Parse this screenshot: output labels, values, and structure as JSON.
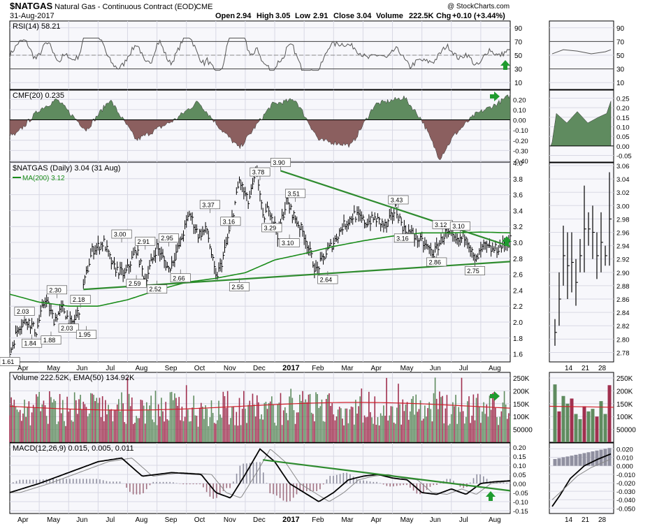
{
  "header": {
    "symbol": "$NATGAS",
    "name": "Natural Gas - Continuous Contract (EOD)",
    "exchange": "CME",
    "date": "31-Aug-2017",
    "open_label": "Open",
    "open": "2.94",
    "high_label": "High",
    "high": "3.05",
    "low_label": "Low",
    "low": "2.91",
    "close_label": "Close",
    "close": "3.04",
    "volume_label": "Volume",
    "volume": "222.5K",
    "chg_label": "Chg",
    "chg": "+0.10 (+3.44%)",
    "brand": "@ StockCharts.com"
  },
  "colors": {
    "price_line": "#000000",
    "ma": "#1a8c1a",
    "trend": "#2e8b2e",
    "cmf_pos": "#5f8b5f",
    "cmf_neg": "#8b5f5f",
    "vol_up": "#5f8b5f",
    "vol_down": "#a0304f",
    "arrow": "#1f9b2f",
    "panel_bg": "#f7f7fb",
    "grid": "#d8d8e4"
  },
  "chart_data": [
    {
      "type": "line",
      "panel": "rsi",
      "title": "RSI(14) 58.21",
      "ylim": [
        0,
        100
      ],
      "y_ticks": [
        10,
        30,
        50,
        70,
        90
      ],
      "overbought": 70,
      "oversold": 30,
      "last_value": 58.21
    },
    {
      "type": "area",
      "panel": "cmf",
      "title": "CMF(20) 0.235",
      "ylim": [
        -0.4,
        0.25
      ],
      "y_ticks": [
        0.2,
        0.1,
        0.0,
        -0.1,
        -0.2,
        -0.3,
        -0.4
      ],
      "y_tick_labels": [
        "0.20",
        "0.10",
        "0.00",
        "-0.10",
        "-0.20",
        "-0.30",
        "-0.40"
      ],
      "last_value": 0.235
    },
    {
      "type": "line",
      "panel": "price",
      "title": "$NATGAS (Daily) 3.04 (31 Aug)",
      "ma_label": "MA(200) 3.12",
      "ylim": [
        1.5,
        4.0
      ],
      "y_ticks": [
        1.6,
        1.8,
        2.0,
        2.2,
        2.4,
        2.6,
        2.8,
        3.0,
        3.2,
        3.4,
        3.6,
        3.8,
        4.0
      ],
      "y_tick_labels": [
        "1.6",
        "1.8",
        "2.0",
        "2.2",
        "2.4",
        "2.6",
        "2.8",
        "3.0",
        "3.2",
        "3.4",
        "3.6",
        "3.8",
        "4.0"
      ],
      "x_labels": [
        "Apr",
        "May",
        "Jun",
        "Jul",
        "Aug",
        "Sep",
        "Oct",
        "Nov",
        "Dec",
        "2017",
        "Feb",
        "Mar",
        "Apr",
        "May",
        "Jun",
        "Jul",
        "Aug"
      ],
      "x_label_pos": [
        0.5,
        1.5,
        2.5,
        3.5,
        4.5,
        5.5,
        6.5,
        7.5,
        8.5,
        9.5,
        10.5,
        11.5,
        12.5,
        13.5,
        14.5,
        15.5,
        16.5
      ],
      "series_x": [
        0,
        0.3,
        0.6,
        0.9,
        1.2,
        1.5,
        1.8,
        2.1,
        2.4,
        2.5,
        2.8,
        3.2,
        3.5,
        3.9,
        4.3,
        4.6,
        5.0,
        5.4,
        5.8,
        6.1,
        6.4,
        6.7,
        7.0,
        7.2,
        7.5,
        7.8,
        8.1,
        8.4,
        8.6,
        8.8,
        9.1,
        9.4,
        9.7,
        10.0,
        10.4,
        10.8,
        11.0,
        11.3,
        11.7,
        12.1,
        12.4,
        12.8,
        13.1,
        13.4,
        13.7,
        14.0,
        14.4,
        14.8,
        15.2,
        15.5,
        15.8,
        16.1,
        16.4,
        16.7,
        17.0
      ],
      "series_y": [
        1.61,
        1.95,
        2.03,
        1.88,
        2.3,
        2.03,
        2.18,
        1.95,
        2.2,
        2.45,
        2.9,
        3.0,
        2.7,
        2.59,
        2.91,
        2.52,
        2.95,
        2.66,
        3.0,
        3.37,
        3.1,
        3.16,
        2.55,
        2.75,
        3.2,
        3.78,
        3.5,
        3.9,
        3.29,
        3.45,
        3.1,
        3.51,
        3.3,
        3.1,
        2.64,
        2.9,
        3.0,
        3.2,
        3.35,
        3.25,
        3.3,
        3.2,
        3.43,
        3.16,
        3.1,
        3.0,
        2.86,
        3.12,
        3.0,
        3.1,
        2.75,
        2.95,
        2.9,
        2.95,
        3.04
      ],
      "ma_x": [
        0,
        1,
        2,
        3,
        4,
        5,
        6,
        7,
        8,
        9,
        10,
        11,
        12,
        13,
        14,
        15,
        16,
        17
      ],
      "ma_y": [
        2.35,
        2.25,
        2.2,
        2.2,
        2.28,
        2.4,
        2.5,
        2.55,
        2.62,
        2.78,
        2.86,
        2.95,
        3.02,
        3.08,
        3.12,
        3.12,
        3.13,
        3.12
      ],
      "annotations": [
        {
          "label": "1.61",
          "x": 0.0,
          "y": 1.61,
          "pos": "below"
        },
        {
          "label": "2.03",
          "x": 0.5,
          "y": 2.03,
          "pos": "above"
        },
        {
          "label": "1.84",
          "x": 0.75,
          "y": 1.84,
          "pos": "below"
        },
        {
          "label": "1.88",
          "x": 1.4,
          "y": 1.88,
          "pos": "below"
        },
        {
          "label": "2.30",
          "x": 1.6,
          "y": 2.3,
          "pos": "above"
        },
        {
          "label": "2.03",
          "x": 2.0,
          "y": 2.03,
          "pos": "below"
        },
        {
          "label": "2.18",
          "x": 2.4,
          "y": 2.18,
          "pos": "above"
        },
        {
          "label": "1.95",
          "x": 2.6,
          "y": 1.95,
          "pos": "below"
        },
        {
          "label": "3.00",
          "x": 3.8,
          "y": 3.0,
          "pos": "above"
        },
        {
          "label": "2.59",
          "x": 4.3,
          "y": 2.59,
          "pos": "below"
        },
        {
          "label": "2.91",
          "x": 4.6,
          "y": 2.91,
          "pos": "above"
        },
        {
          "label": "2.52",
          "x": 5.0,
          "y": 2.52,
          "pos": "below"
        },
        {
          "label": "2.95",
          "x": 5.4,
          "y": 2.95,
          "pos": "above"
        },
        {
          "label": "2.66",
          "x": 5.8,
          "y": 2.66,
          "pos": "below"
        },
        {
          "label": "3.37",
          "x": 6.8,
          "y": 3.37,
          "pos": "above"
        },
        {
          "label": "3.16",
          "x": 7.5,
          "y": 3.16,
          "pos": "above"
        },
        {
          "label": "2.55",
          "x": 7.8,
          "y": 2.55,
          "pos": "below"
        },
        {
          "label": "3.78",
          "x": 8.5,
          "y": 3.78,
          "pos": "above"
        },
        {
          "label": "3.90",
          "x": 9.2,
          "y": 3.9,
          "pos": "above"
        },
        {
          "label": "3.29",
          "x": 8.9,
          "y": 3.29,
          "pos": "below"
        },
        {
          "label": "3.51",
          "x": 9.7,
          "y": 3.51,
          "pos": "above"
        },
        {
          "label": "3.10",
          "x": 9.5,
          "y": 3.1,
          "pos": "below"
        },
        {
          "label": "2.64",
          "x": 10.8,
          "y": 2.64,
          "pos": "below"
        },
        {
          "label": "3.43",
          "x": 13.2,
          "y": 3.43,
          "pos": "above"
        },
        {
          "label": "3.16",
          "x": 13.4,
          "y": 3.16,
          "pos": "below"
        },
        {
          "label": "3.12",
          "x": 14.7,
          "y": 3.12,
          "pos": "above"
        },
        {
          "label": "2.86",
          "x": 14.5,
          "y": 2.86,
          "pos": "below"
        },
        {
          "label": "3.10",
          "x": 15.3,
          "y": 3.1,
          "pos": "above"
        },
        {
          "label": "2.75",
          "x": 15.8,
          "y": 2.75,
          "pos": "below"
        }
      ]
    },
    {
      "type": "bar",
      "panel": "volume",
      "title": "Volume 222.52K, EMA(50) 134.92K",
      "ylim": [
        0,
        250000
      ],
      "y_ticks": [
        50000,
        100000,
        150000,
        200000,
        250000
      ],
      "y_tick_labels": [
        "50000",
        "100K",
        "150K",
        "200K",
        "250K"
      ]
    },
    {
      "type": "line",
      "panel": "macd",
      "title": "MACD(12,26,9) 0.015, 0.005, 0.011",
      "ylim": [
        -0.15,
        0.2
      ],
      "y_ticks": [
        0.2,
        0.15,
        0.1,
        0.05,
        0.0,
        -0.05,
        -0.1,
        -0.15
      ],
      "y_tick_labels": [
        "0.20",
        "0.15",
        "0.10",
        "0.05",
        "0.00",
        "-0.05",
        "-0.10",
        "-0.15"
      ],
      "x_labels": [
        "Apr",
        "May",
        "Jun",
        "Jul",
        "Aug",
        "Sep",
        "Oct",
        "Nov",
        "Dec",
        "2017",
        "Feb",
        "Mar",
        "Apr",
        "May",
        "Jun",
        "Jul",
        "Aug"
      ],
      "x_label_pos": [
        0.5,
        1.5,
        2.5,
        3.5,
        4.5,
        5.5,
        6.5,
        7.5,
        8.5,
        9.5,
        10.5,
        11.5,
        12.5,
        13.5,
        14.5,
        15.5,
        16.5
      ],
      "macd_x": [
        0,
        1,
        2,
        3,
        3.8,
        4.5,
        5.5,
        6.5,
        7.0,
        7.5,
        8.0,
        8.5,
        9.0,
        9.5,
        10.0,
        10.5,
        11.0,
        11.5,
        12.0,
        12.5,
        13.0,
        13.5,
        14.0,
        14.5,
        15.0,
        15.5,
        16.0,
        16.5,
        17.0
      ],
      "macd_y": [
        -0.05,
        0.0,
        0.06,
        0.12,
        0.14,
        0.04,
        0.06,
        0.05,
        -0.05,
        -0.08,
        0.05,
        0.19,
        0.12,
        0.0,
        -0.05,
        -0.1,
        -0.05,
        0.02,
        0.04,
        0.05,
        0.03,
        0.02,
        -0.05,
        -0.06,
        -0.03,
        -0.06,
        0.0,
        0.01,
        0.015
      ]
    },
    {
      "type": "line",
      "panel": "zoom-price",
      "ylim": [
        2.77,
        3.06
      ],
      "y_ticks": [
        2.78,
        2.8,
        2.82,
        2.84,
        2.86,
        2.88,
        2.9,
        2.92,
        2.94,
        2.96,
        2.98,
        3.0,
        3.02,
        3.04,
        3.06
      ],
      "y_tick_labels": [
        "2.78",
        "2.80",
        "2.82",
        "2.84",
        "2.86",
        "2.88",
        "2.90",
        "2.92",
        "2.94",
        "2.96",
        "2.98",
        "3.00",
        "3.02",
        "3.04",
        "3.06"
      ],
      "x_labels": [
        "14",
        "21",
        "28"
      ],
      "zoom_rsi_ticks": [
        "90",
        "70",
        "50",
        "30",
        "10"
      ],
      "zoom_cmf_ticks": [
        "0.25",
        "0.20",
        "0.15",
        "0.10",
        "0.05",
        "0.00",
        "-0.05"
      ],
      "zoom_vol_ticks": [
        "250K",
        "200K",
        "150K",
        "100K",
        "50000"
      ],
      "zoom_macd_ticks": [
        "0.020",
        "0.010",
        "0.000",
        "-0.010",
        "-0.020",
        "-0.030",
        "-0.040",
        "-0.050"
      ],
      "bars_high": [
        2.83,
        2.9,
        2.97,
        2.96,
        2.96,
        2.92,
        2.95,
        3.03,
        2.99,
        3.0,
        2.96,
        2.99,
        2.94,
        3.05
      ],
      "bars_low": [
        2.79,
        2.82,
        2.88,
        2.86,
        2.87,
        2.85,
        2.9,
        2.9,
        2.94,
        2.92,
        2.89,
        2.9,
        2.91,
        2.91
      ]
    }
  ]
}
